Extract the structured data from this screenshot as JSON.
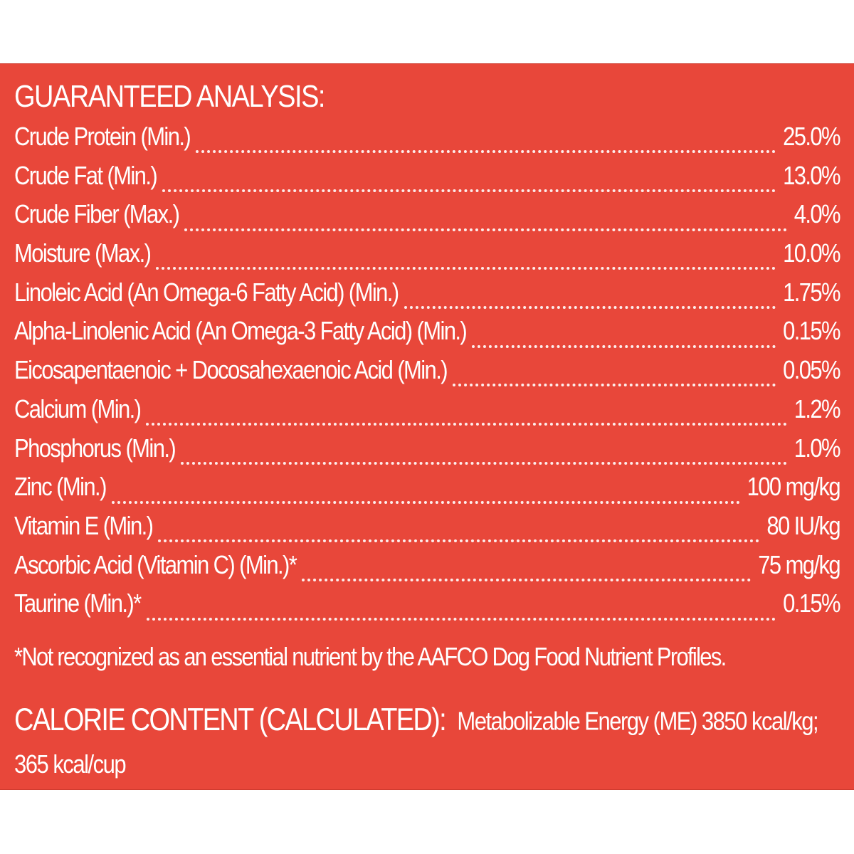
{
  "panel": {
    "background_color": "#e8473a",
    "text_color": "#ffffff",
    "heading": "GUARANTEED ANALYSIS:",
    "rows": [
      {
        "label": "Crude Protein (Min.)",
        "value": "25.0%"
      },
      {
        "label": "Crude Fat (Min.)",
        "value": "13.0%"
      },
      {
        "label": "Crude Fiber (Max.)",
        "value": "4.0%"
      },
      {
        "label": "Moisture (Max.)",
        "value": "10.0%"
      },
      {
        "label": "Linoleic Acid (An Omega-6 Fatty Acid) (Min.)",
        "value": "1.75%"
      },
      {
        "label": "Alpha-Linolenic Acid (An Omega-3 Fatty Acid) (Min.)",
        "value": "0.15%"
      },
      {
        "label": "Eicosapentaenoic + Docosahexaenoic Acid (Min.)",
        "value": "0.05%"
      },
      {
        "label": "Calcium (Min.)",
        "value": "1.2%"
      },
      {
        "label": "Phosphorus (Min.)",
        "value": "1.0%"
      },
      {
        "label": "Zinc (Min.)",
        "value": "100 mg/kg"
      },
      {
        "label": "Vitamin E (Min.)",
        "value": "80 IU/kg"
      },
      {
        "label": "Ascorbic Acid (Vitamin C) (Min.)*",
        "value": "75 mg/kg"
      },
      {
        "label": "Taurine (Min.)*",
        "value": "0.15%"
      }
    ],
    "footnote": "*Not recognized as an essential nutrient by the AAFCO Dog Food Nutrient Profiles.",
    "calorie": {
      "heading": "CALORIE CONTENT (CALCULATED):",
      "line1": "Metabolizable Energy (ME) 3850 kcal/kg;",
      "line2": "365 kcal/cup"
    }
  }
}
